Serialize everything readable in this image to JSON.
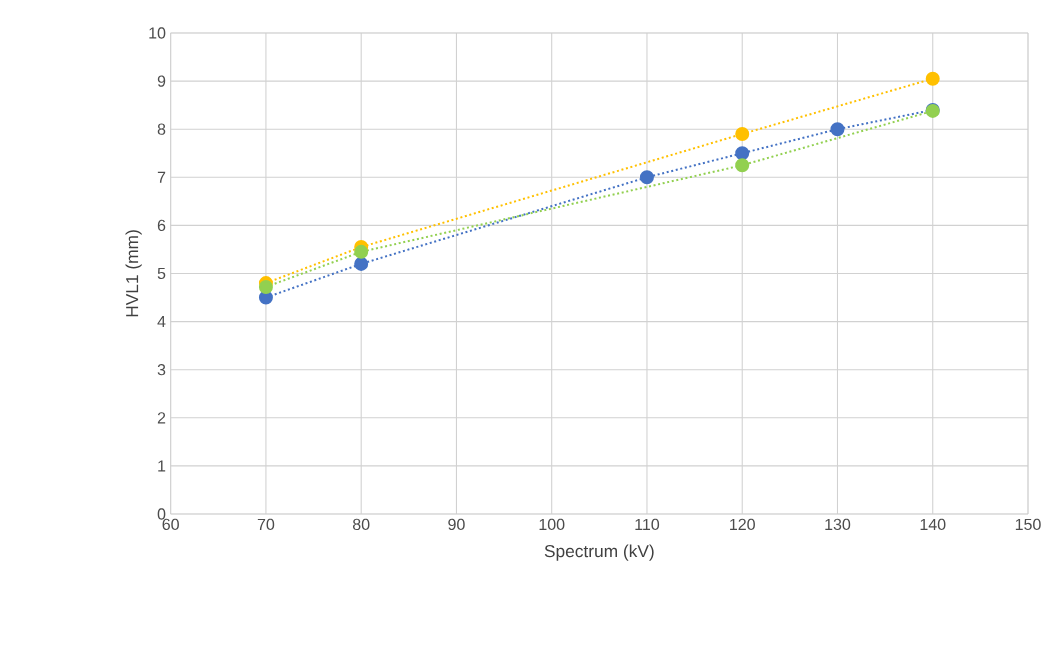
{
  "chart_data": {
    "type": "line",
    "xlabel": "Spectrum (kV)",
    "ylabel": "HVL1  (mm)",
    "xlim": [
      60,
      150
    ],
    "xticks": [
      60,
      70,
      80,
      90,
      100,
      110,
      120,
      130,
      140,
      150
    ],
    "ylim": [
      0,
      10
    ],
    "yticks": [
      0,
      1,
      2,
      3,
      4,
      5,
      6,
      7,
      8,
      9,
      10
    ],
    "grid": true,
    "marker": "circle",
    "line_style": "dotted",
    "series": [
      {
        "color": "#4472c4",
        "x": [
          70,
          80,
          110,
          120,
          130,
          140
        ],
        "values": [
          4.5,
          5.2,
          7.0,
          7.5,
          8.0,
          8.4
        ]
      },
      {
        "color": "#ffc000",
        "x": [
          70,
          80,
          120,
          140
        ],
        "values": [
          4.8,
          5.55,
          7.9,
          9.05
        ]
      },
      {
        "color": "#92d050",
        "x": [
          70,
          80,
          120,
          140
        ],
        "values": [
          4.72,
          5.45,
          7.25,
          8.38
        ]
      }
    ]
  }
}
